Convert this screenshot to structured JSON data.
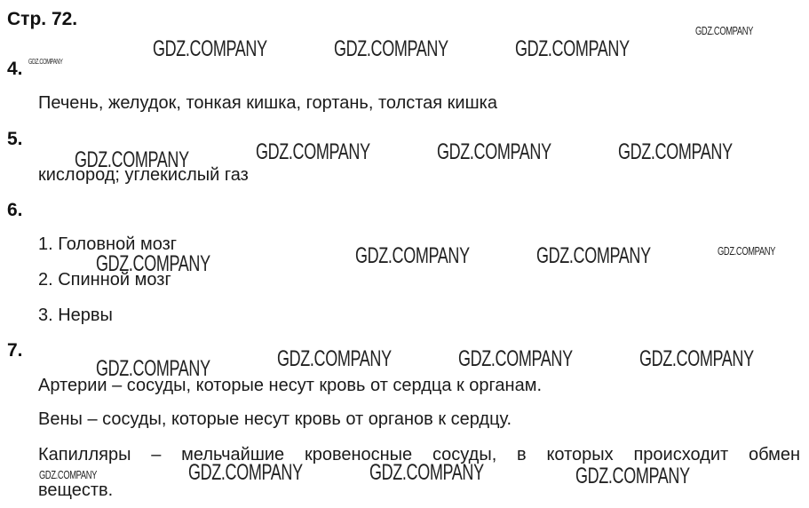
{
  "page_title": "Стр. 72.",
  "watermark": "GDZ.COMPANY",
  "tasks": [
    {
      "number": "4.",
      "lines": [
        "Печень, желудок, тонкая кишка, гортань, толстая кишка"
      ]
    },
    {
      "number": "5.",
      "lines": [
        "кислород; углекислый газ"
      ]
    },
    {
      "number": "6.",
      "lines": [
        "1. Головной мозг",
        "2. Спинной мозг",
        "3. Нервы"
      ]
    },
    {
      "number": "7.",
      "lines": [
        "Артерии – сосуды, которые несут кровь от сердца к органам.",
        "Вены – сосуды, которые несут кровь от органов к сердцу.",
        "Капилляры – мельчайшие кровеносные сосуды, в которых происходит обмен",
        "веществ."
      ]
    }
  ]
}
